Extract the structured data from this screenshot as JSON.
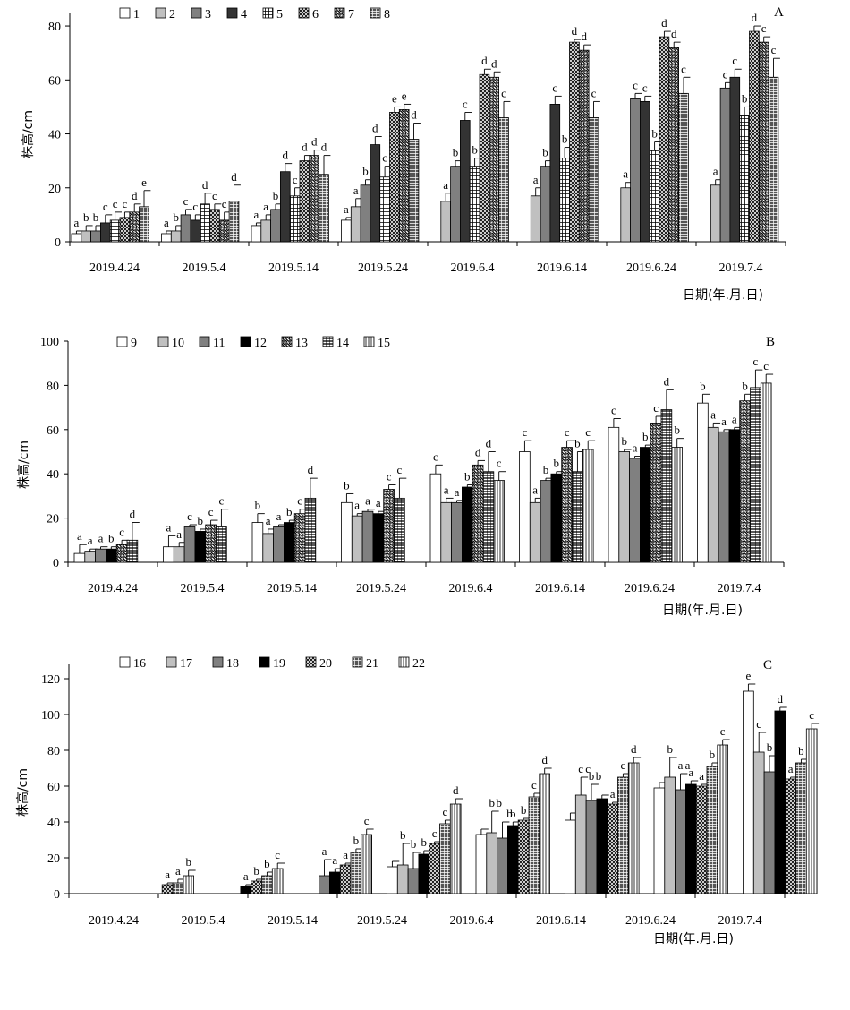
{
  "chart_data": [
    {
      "type": "bar",
      "panel": "A",
      "ylabel": "株高/cm",
      "xlabel": "日期(年.月.日)",
      "ylim": [
        0,
        85
      ],
      "yticks": [
        0,
        20,
        40,
        60,
        80
      ],
      "categories": [
        "2019.4.24",
        "2019.5.4",
        "2019.5.14",
        "2019.5.24",
        "2019.6.4",
        "2019.6.14",
        "2019.6.24",
        "2019.7.4"
      ],
      "legend_position": "top-left",
      "series": [
        {
          "name": "1",
          "pattern": "white",
          "values": [
            3,
            3,
            6,
            8,
            null,
            null,
            null,
            null
          ],
          "errors": [
            1,
            1,
            1,
            1,
            0,
            0,
            0,
            0
          ],
          "labels": [
            "a",
            "a",
            "a",
            "a",
            "",
            "",
            "",
            ""
          ]
        },
        {
          "name": "2",
          "pattern": "lightgray",
          "values": [
            4,
            4,
            8,
            13,
            15,
            17,
            20,
            21
          ],
          "errors": [
            2,
            2,
            2,
            3,
            3,
            3,
            2,
            2
          ],
          "labels": [
            "b",
            "b",
            "a",
            "a",
            "a",
            "a",
            "a",
            "a"
          ]
        },
        {
          "name": "3",
          "pattern": "gray",
          "values": [
            4,
            10,
            12,
            21,
            28,
            28,
            53,
            57
          ],
          "errors": [
            2,
            2,
            2,
            2,
            2,
            2,
            2,
            2
          ],
          "labels": [
            "b",
            "c",
            "b",
            "b",
            "b",
            "b",
            "c",
            "c"
          ]
        },
        {
          "name": "4",
          "pattern": "dark",
          "values": [
            7,
            8,
            26,
            36,
            45,
            51,
            52,
            61
          ],
          "errors": [
            3,
            2,
            3,
            3,
            3,
            3,
            2,
            3
          ],
          "labels": [
            "c",
            "c",
            "d",
            "d",
            "c",
            "c",
            "c",
            "c"
          ]
        },
        {
          "name": "5",
          "pattern": "grid",
          "values": [
            8,
            14,
            17,
            24,
            28,
            31,
            34,
            47
          ],
          "errors": [
            3,
            4,
            3,
            4,
            3,
            4,
            3,
            3
          ],
          "labels": [
            "c",
            "d",
            "c",
            "c",
            "b",
            "b",
            "b",
            "b"
          ]
        },
        {
          "name": "6",
          "pattern": "cross",
          "values": [
            9,
            12,
            30,
            48,
            62,
            74,
            76,
            78
          ],
          "errors": [
            2,
            2,
            2,
            2,
            2,
            1,
            2,
            2
          ],
          "labels": [
            "c",
            "c",
            "d",
            "e",
            "d",
            "d",
            "d",
            "d"
          ]
        },
        {
          "name": "7",
          "pattern": "diag",
          "values": [
            11,
            8,
            32,
            49,
            61,
            71,
            72,
            74
          ],
          "errors": [
            3,
            3,
            2,
            2,
            2,
            2,
            2,
            2
          ],
          "labels": [
            "d",
            "c",
            "d",
            "e",
            "d",
            "d",
            "d",
            "c"
          ]
        },
        {
          "name": "8",
          "pattern": "brick",
          "values": [
            13,
            15,
            25,
            38,
            46,
            46,
            55,
            61
          ],
          "errors": [
            6,
            6,
            7,
            6,
            6,
            6,
            6,
            7
          ],
          "labels": [
            "e",
            "d",
            "d",
            "d",
            "c",
            "c",
            "c",
            "c"
          ]
        }
      ]
    },
    {
      "type": "bar",
      "panel": "B",
      "ylabel": "株高/cm",
      "xlabel": "日期(年.月.日)",
      "ylim": [
        0,
        100
      ],
      "yticks": [
        0,
        20,
        40,
        60,
        80,
        100
      ],
      "categories": [
        "2019.4.24",
        "2019.5.4",
        "2019.5.14",
        "2019.5.24",
        "2019.6.4",
        "2019.6.14",
        "2019.6.24",
        "2019.7.4"
      ],
      "legend_position": "top-left",
      "series": [
        {
          "name": "9",
          "pattern": "white",
          "values": [
            4,
            7,
            18,
            27,
            40,
            50,
            61,
            72
          ],
          "errors": [
            4,
            5,
            4,
            4,
            4,
            5,
            4,
            4
          ],
          "labels": [
            "a",
            "a",
            "b",
            "b",
            "c",
            "c",
            "c",
            "b"
          ]
        },
        {
          "name": "10",
          "pattern": "lightgray",
          "values": [
            5,
            7,
            13,
            21,
            27,
            27,
            50,
            61
          ],
          "errors": [
            1,
            2,
            2,
            1,
            2,
            2,
            1,
            2
          ],
          "labels": [
            "a",
            "a",
            "a",
            "a",
            "a",
            "a",
            "b",
            "a"
          ]
        },
        {
          "name": "11",
          "pattern": "gray",
          "values": [
            6,
            16,
            16,
            23,
            27,
            37,
            47,
            59
          ],
          "errors": [
            1,
            1,
            1,
            1,
            1,
            1,
            1,
            1
          ],
          "labels": [
            "a",
            "c",
            "a",
            "a",
            "a",
            "b",
            "a",
            "a"
          ]
        },
        {
          "name": "12",
          "pattern": "black",
          "values": [
            6,
            14,
            18,
            22,
            34,
            40,
            52,
            60
          ],
          "errors": [
            1,
            1,
            1,
            1,
            1,
            1,
            1,
            1
          ],
          "labels": [
            "b",
            "b",
            "b",
            "a",
            "b",
            "b",
            "b",
            "a"
          ]
        },
        {
          "name": "13",
          "pattern": "diag",
          "values": [
            8,
            17,
            22,
            33,
            44,
            52,
            63,
            73
          ],
          "errors": [
            2,
            2,
            2,
            2,
            2,
            3,
            3,
            3
          ],
          "labels": [
            "c",
            "c",
            "c",
            "c",
            "d",
            "c",
            "c",
            "b"
          ]
        },
        {
          "name": "14",
          "pattern": "hline",
          "values": [
            10,
            16,
            29,
            29,
            41,
            41,
            69,
            79
          ],
          "errors": [
            8,
            8,
            9,
            9,
            9,
            9,
            9,
            8
          ],
          "labels": [
            "d",
            "c",
            "d",
            "c",
            "d",
            "b",
            "d",
            "c"
          ]
        },
        {
          "name": "15",
          "pattern": "vline",
          "values": [
            null,
            null,
            null,
            null,
            37,
            51,
            52,
            81
          ],
          "errors": [
            0,
            0,
            0,
            0,
            4,
            4,
            4,
            4
          ],
          "labels": [
            "",
            "",
            "",
            "",
            "c",
            "c",
            "b",
            "c"
          ]
        }
      ]
    },
    {
      "type": "bar",
      "panel": "C",
      "ylabel": "株高/cm",
      "xlabel": "日期(年.月.日)",
      "ylim": [
        0,
        128
      ],
      "yticks": [
        0,
        20,
        40,
        60,
        80,
        100,
        120
      ],
      "categories": [
        "2019.4.24",
        "2019.5.4",
        "2019.5.14",
        "2019.5.24",
        "2019.6.4",
        "2019.6.14",
        "2019.6.24",
        "2019.7.4"
      ],
      "legend_position": "top-left",
      "series": [
        {
          "name": "16",
          "pattern": "white",
          "values": [
            null,
            null,
            null,
            15,
            33,
            41,
            59,
            113
          ],
          "errors": [
            0,
            0,
            0,
            3,
            3,
            4,
            3,
            4
          ],
          "labels": [
            "",
            "",
            "",
            "",
            "",
            "",
            "",
            "e"
          ]
        },
        {
          "name": "17",
          "pattern": "lightgray",
          "values": [
            null,
            null,
            null,
            16,
            34,
            55,
            65,
            79
          ],
          "errors": [
            0,
            0,
            0,
            12,
            12,
            10,
            11,
            11
          ],
          "labels": [
            "",
            "",
            "",
            "b",
            "b",
            "c",
            "b",
            "c"
          ]
        },
        {
          "name": "18",
          "pattern": "gray",
          "values": [
            null,
            null,
            10,
            14,
            31,
            52,
            58,
            68
          ],
          "errors": [
            0,
            0,
            9,
            9,
            9,
            9,
            9,
            9
          ],
          "labels": [
            "",
            "",
            "a",
            "b",
            "",
            "b",
            "a",
            "b"
          ]
        },
        {
          "name": "19",
          "pattern": "black",
          "values": [
            null,
            4,
            12,
            22,
            38,
            53,
            61,
            102
          ],
          "errors": [
            0,
            1,
            2,
            2,
            2,
            2,
            2,
            2
          ],
          "labels": [
            "",
            "a",
            "a",
            "b",
            "b",
            "",
            "a",
            "d"
          ]
        },
        {
          "name": "20",
          "pattern": "cross",
          "values": [
            5,
            7,
            16,
            28,
            41,
            50,
            60,
            64
          ],
          "errors": [
            1,
            1,
            1,
            1,
            1,
            1,
            1,
            1
          ],
          "labels": [
            "a",
            "b",
            "a",
            "c",
            "b",
            "a",
            "a",
            "a"
          ]
        },
        {
          "name": "21",
          "pattern": "brick",
          "values": [
            6,
            10,
            23,
            39,
            54,
            65,
            71,
            73
          ],
          "errors": [
            2,
            2,
            2,
            2,
            2,
            2,
            2,
            2
          ],
          "labels": [
            "a",
            "b",
            "b",
            "c",
            "c",
            "c",
            "b",
            "b"
          ]
        },
        {
          "name": "22",
          "pattern": "vline",
          "values": [
            10,
            14,
            33,
            50,
            67,
            73,
            83,
            92
          ],
          "errors": [
            3,
            3,
            3,
            3,
            3,
            3,
            3,
            3
          ],
          "labels": [
            "b",
            "c",
            "c",
            "d",
            "d",
            "d",
            "c",
            "c"
          ]
        }
      ]
    }
  ],
  "panel_extra_labels": [
    [],
    [],
    [
      {
        "cat": 4,
        "series": 1,
        "text": "b"
      },
      {
        "cat": 4,
        "series": 2,
        "text": "b"
      },
      {
        "cat": 5,
        "series": 1,
        "text": "c"
      },
      {
        "cat": 5,
        "series": 2,
        "text": "b"
      },
      {
        "cat": 6,
        "series": 2,
        "text": "a"
      }
    ]
  ]
}
